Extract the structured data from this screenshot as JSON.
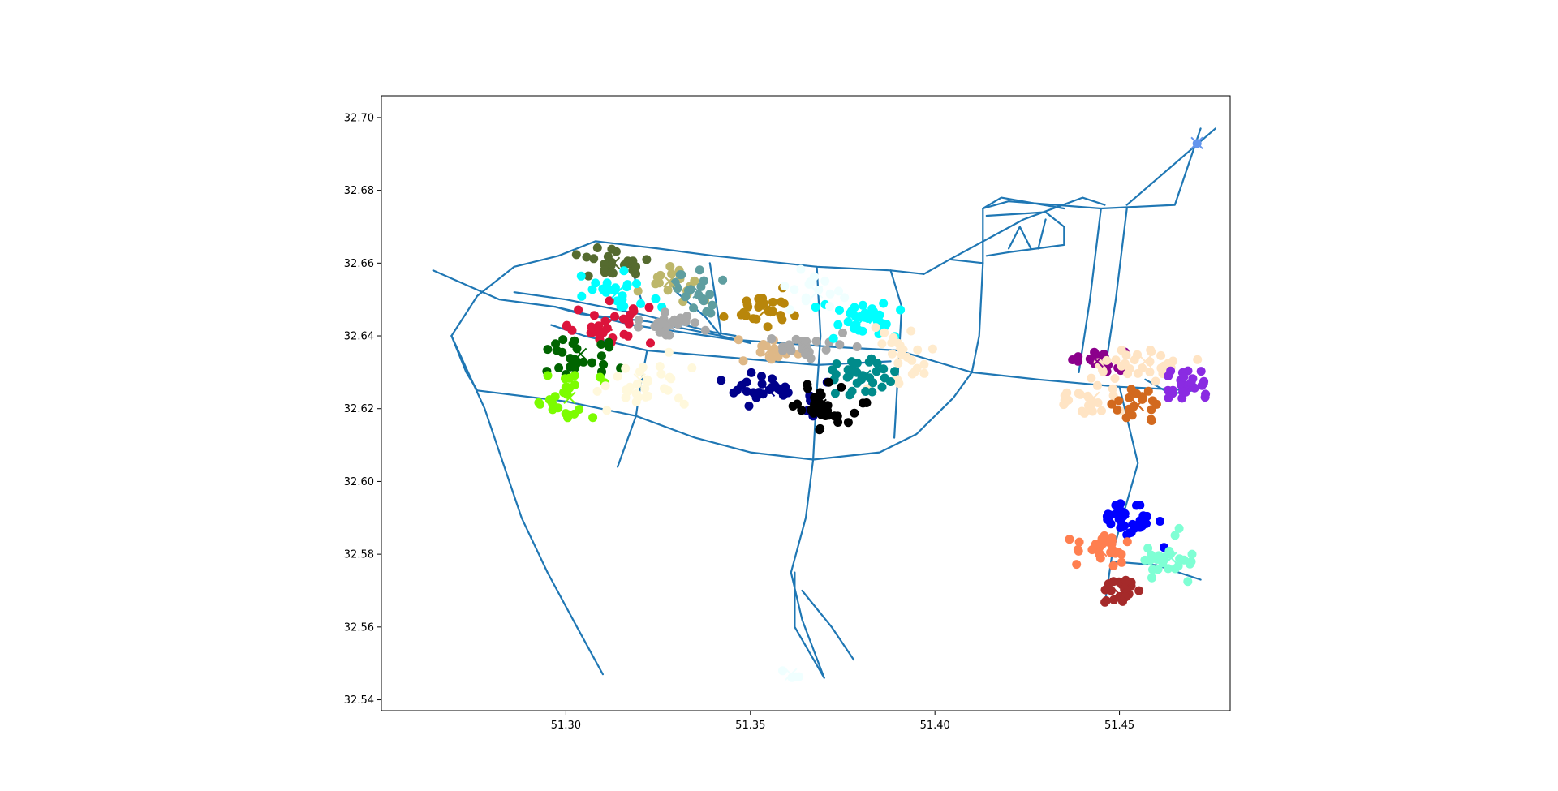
{
  "chart_data": {
    "type": "scatter",
    "title": "",
    "xlabel": "",
    "ylabel": "",
    "xlim": [
      51.25,
      51.48
    ],
    "ylim": [
      32.537,
      32.706
    ],
    "xticks": [
      51.3,
      51.35,
      51.4,
      51.45
    ],
    "xtick_labels": [
      "51.30",
      "51.35",
      "51.40",
      "51.45"
    ],
    "yticks": [
      32.54,
      32.56,
      32.58,
      32.6,
      32.62,
      32.64,
      32.66,
      32.68,
      32.7
    ],
    "ytick_labels": [
      "32.54",
      "32.56",
      "32.58",
      "32.60",
      "32.62",
      "32.64",
      "32.66",
      "32.68",
      "32.70"
    ],
    "grid": false,
    "legend": "none",
    "road_color": "#1f77b4",
    "roads": [
      [
        [
          51.264,
          32.658
        ],
        [
          51.282,
          32.65
        ],
        [
          51.297,
          32.648
        ],
        [
          51.318,
          32.643
        ],
        [
          51.345,
          32.639
        ],
        [
          51.372,
          32.637
        ],
        [
          51.39,
          32.636
        ],
        [
          51.41,
          32.63
        ],
        [
          51.428,
          32.628
        ],
        [
          51.45,
          32.626
        ],
        [
          51.47,
          32.625
        ]
      ],
      [
        [
          51.269,
          32.64
        ],
        [
          51.276,
          32.651
        ],
        [
          51.286,
          32.659
        ],
        [
          51.298,
          32.662
        ],
        [
          51.308,
          32.666
        ],
        [
          51.325,
          32.664
        ],
        [
          51.34,
          32.662
        ],
        [
          51.368,
          32.659
        ],
        [
          51.388,
          32.658
        ],
        [
          51.397,
          32.657
        ]
      ],
      [
        [
          51.269,
          32.64
        ],
        [
          51.273,
          32.63
        ],
        [
          51.276,
          32.625
        ],
        [
          51.3,
          32.622
        ],
        [
          51.319,
          32.618
        ],
        [
          51.335,
          32.612
        ],
        [
          51.35,
          32.608
        ],
        [
          51.367,
          32.606
        ],
        [
          51.385,
          32.608
        ],
        [
          51.395,
          32.613
        ],
        [
          51.405,
          32.623
        ],
        [
          51.41,
          32.63
        ],
        [
          51.412,
          32.64
        ],
        [
          51.413,
          32.66
        ],
        [
          51.413,
          32.675
        ],
        [
          51.42,
          32.677
        ],
        [
          51.445,
          32.675
        ],
        [
          51.465,
          32.676
        ],
        [
          51.472,
          32.697
        ]
      ],
      [
        [
          51.269,
          32.64
        ],
        [
          51.278,
          32.62
        ],
        [
          51.288,
          32.59
        ],
        [
          51.295,
          32.575
        ],
        [
          51.303,
          32.56
        ],
        [
          51.31,
          32.547
        ]
      ],
      [
        [
          51.297,
          32.648
        ],
        [
          51.304,
          32.646
        ],
        [
          51.322,
          32.644
        ],
        [
          51.342,
          32.64
        ],
        [
          51.35,
          32.638
        ]
      ],
      [
        [
          51.286,
          32.652
        ],
        [
          51.3,
          32.65
        ],
        [
          51.32,
          32.646
        ],
        [
          51.34,
          32.641
        ],
        [
          51.346,
          32.64
        ]
      ],
      [
        [
          51.296,
          32.643
        ],
        [
          51.305,
          32.64
        ],
        [
          51.322,
          32.636
        ],
        [
          51.345,
          32.634
        ],
        [
          51.368,
          32.632
        ],
        [
          51.388,
          32.633
        ]
      ],
      [
        [
          51.322,
          32.636
        ],
        [
          51.32,
          32.625
        ],
        [
          51.319,
          32.618
        ],
        [
          51.314,
          32.604
        ]
      ],
      [
        [
          51.368,
          32.659
        ],
        [
          51.369,
          32.64
        ],
        [
          51.368,
          32.625
        ],
        [
          51.367,
          32.606
        ],
        [
          51.365,
          32.59
        ],
        [
          51.361,
          32.575
        ],
        [
          51.364,
          32.562
        ],
        [
          51.37,
          32.546
        ]
      ],
      [
        [
          51.362,
          32.575
        ],
        [
          51.362,
          32.56
        ],
        [
          51.37,
          32.546
        ]
      ],
      [
        [
          51.364,
          32.57
        ],
        [
          51.372,
          32.56
        ],
        [
          51.378,
          32.551
        ]
      ],
      [
        [
          51.388,
          32.658
        ],
        [
          51.391,
          32.648
        ],
        [
          51.39,
          32.63
        ],
        [
          51.389,
          32.612
        ]
      ],
      [
        [
          51.397,
          32.657
        ],
        [
          51.404,
          32.661
        ],
        [
          51.413,
          32.66
        ]
      ],
      [
        [
          51.413,
          32.675
        ],
        [
          51.418,
          32.678
        ],
        [
          51.435,
          32.675
        ]
      ],
      [
        [
          51.414,
          32.673
        ],
        [
          51.43,
          32.674
        ],
        [
          51.435,
          32.67
        ],
        [
          51.435,
          32.665
        ],
        [
          51.42,
          32.663
        ],
        [
          51.414,
          32.662
        ]
      ],
      [
        [
          51.42,
          32.664
        ],
        [
          51.423,
          32.67
        ],
        [
          51.426,
          32.664
        ]
      ],
      [
        [
          51.428,
          32.664
        ],
        [
          51.43,
          32.672
        ]
      ],
      [
        [
          51.404,
          32.661
        ],
        [
          51.424,
          32.672
        ],
        [
          51.44,
          32.678
        ],
        [
          51.446,
          32.676
        ]
      ],
      [
        [
          51.445,
          32.675
        ],
        [
          51.442,
          32.65
        ],
        [
          51.439,
          32.63
        ]
      ],
      [
        [
          51.452,
          32.675
        ],
        [
          51.449,
          32.65
        ],
        [
          51.446,
          32.63
        ]
      ],
      [
        [
          51.45,
          32.626
        ],
        [
          51.455,
          32.605
        ],
        [
          51.448,
          32.58
        ],
        [
          51.446,
          32.566
        ]
      ],
      [
        [
          51.448,
          32.578
        ],
        [
          51.46,
          32.577
        ],
        [
          51.472,
          32.573
        ]
      ],
      [
        [
          51.457,
          32.628
        ],
        [
          51.464,
          32.624
        ],
        [
          51.47,
          32.625
        ]
      ],
      [
        [
          51.452,
          32.676
        ],
        [
          51.476,
          32.697
        ]
      ],
      [
        [
          51.33,
          32.652
        ],
        [
          51.338,
          32.645
        ],
        [
          51.342,
          32.64
        ]
      ],
      [
        [
          51.342,
          32.641
        ],
        [
          51.339,
          32.66
        ]
      ],
      [
        [
          51.318,
          32.658
        ],
        [
          51.321,
          32.648
        ]
      ]
    ],
    "series": [
      {
        "color": "#556b2f",
        "cx": 51.313,
        "cy": 32.66,
        "sx": 0.006,
        "sy": 0.003,
        "n": 24
      },
      {
        "color": "#bdb76b",
        "cx": 51.328,
        "cy": 32.655,
        "sx": 0.005,
        "sy": 0.003,
        "n": 18
      },
      {
        "color": "#5f9ea0",
        "cx": 51.336,
        "cy": 32.652,
        "sx": 0.004,
        "sy": 0.004,
        "n": 20
      },
      {
        "color": "#00ffff",
        "cx": 51.314,
        "cy": 32.652,
        "sx": 0.006,
        "sy": 0.003,
        "n": 24
      },
      {
        "color": "#dc143c",
        "cx": 51.311,
        "cy": 32.643,
        "sx": 0.006,
        "sy": 0.003,
        "n": 28
      },
      {
        "color": "#a9a9a9",
        "cx": 51.328,
        "cy": 32.643,
        "sx": 0.006,
        "sy": 0.002,
        "n": 22
      },
      {
        "color": "#006400",
        "cx": 51.304,
        "cy": 32.635,
        "sx": 0.006,
        "sy": 0.003,
        "n": 28
      },
      {
        "color": "#7cfc00",
        "cx": 51.301,
        "cy": 32.623,
        "sx": 0.005,
        "sy": 0.003,
        "n": 26
      },
      {
        "color": "#fff8dc",
        "cx": 51.32,
        "cy": 32.628,
        "sx": 0.008,
        "sy": 0.004,
        "n": 30
      },
      {
        "color": "#b8860b",
        "cx": 51.354,
        "cy": 32.647,
        "sx": 0.005,
        "sy": 0.003,
        "n": 24
      },
      {
        "color": "#deb887",
        "cx": 51.355,
        "cy": 32.636,
        "sx": 0.005,
        "sy": 0.002,
        "n": 18
      },
      {
        "color": "#a9a9a9",
        "cx": 51.365,
        "cy": 32.637,
        "sx": 0.006,
        "sy": 0.002,
        "n": 22
      },
      {
        "color": "#00ffff",
        "cx": 51.381,
        "cy": 32.645,
        "sx": 0.006,
        "sy": 0.003,
        "n": 36
      },
      {
        "color": "#f0ffff",
        "cx": 51.368,
        "cy": 32.652,
        "sx": 0.006,
        "sy": 0.003,
        "n": 16
      },
      {
        "color": "#ffebcd",
        "cx": 51.391,
        "cy": 32.635,
        "sx": 0.005,
        "sy": 0.005,
        "n": 24
      },
      {
        "color": "#008b8b",
        "cx": 51.381,
        "cy": 32.629,
        "sx": 0.006,
        "sy": 0.003,
        "n": 30
      },
      {
        "color": "#00008b",
        "cx": 51.355,
        "cy": 32.625,
        "sx": 0.006,
        "sy": 0.003,
        "n": 32
      },
      {
        "color": "#000000",
        "cx": 51.369,
        "cy": 32.621,
        "sx": 0.005,
        "sy": 0.003,
        "n": 36
      },
      {
        "color": "#8b008b",
        "cx": 51.444,
        "cy": 32.633,
        "sx": 0.004,
        "sy": 0.002,
        "n": 20
      },
      {
        "color": "#ffe4c4",
        "cx": 51.457,
        "cy": 32.633,
        "sx": 0.007,
        "sy": 0.002,
        "n": 30
      },
      {
        "color": "#ffe4c4",
        "cx": 51.443,
        "cy": 32.623,
        "sx": 0.005,
        "sy": 0.003,
        "n": 26
      },
      {
        "color": "#d2691e",
        "cx": 51.455,
        "cy": 32.621,
        "sx": 0.004,
        "sy": 0.003,
        "n": 20
      },
      {
        "color": "#8a2be2",
        "cx": 51.468,
        "cy": 32.627,
        "sx": 0.003,
        "sy": 0.003,
        "n": 26
      },
      {
        "color": "#6495ed",
        "cx": 51.471,
        "cy": 32.693,
        "sx": 0.0003,
        "sy": 0.0003,
        "n": 1
      },
      {
        "color": "#0000ff",
        "cx": 51.451,
        "cy": 32.589,
        "sx": 0.005,
        "sy": 0.003,
        "n": 34
      },
      {
        "color": "#ff7f50",
        "cx": 51.445,
        "cy": 32.581,
        "sx": 0.004,
        "sy": 0.003,
        "n": 30
      },
      {
        "color": "#7fffd4",
        "cx": 51.464,
        "cy": 32.579,
        "sx": 0.004,
        "sy": 0.003,
        "n": 24
      },
      {
        "color": "#a52a2a",
        "cx": 51.45,
        "cy": 32.569,
        "sx": 0.003,
        "sy": 0.003,
        "n": 22
      },
      {
        "color": "#f0ffff",
        "cx": 51.361,
        "cy": 32.547,
        "sx": 0.002,
        "sy": 0.001,
        "n": 4
      }
    ]
  }
}
